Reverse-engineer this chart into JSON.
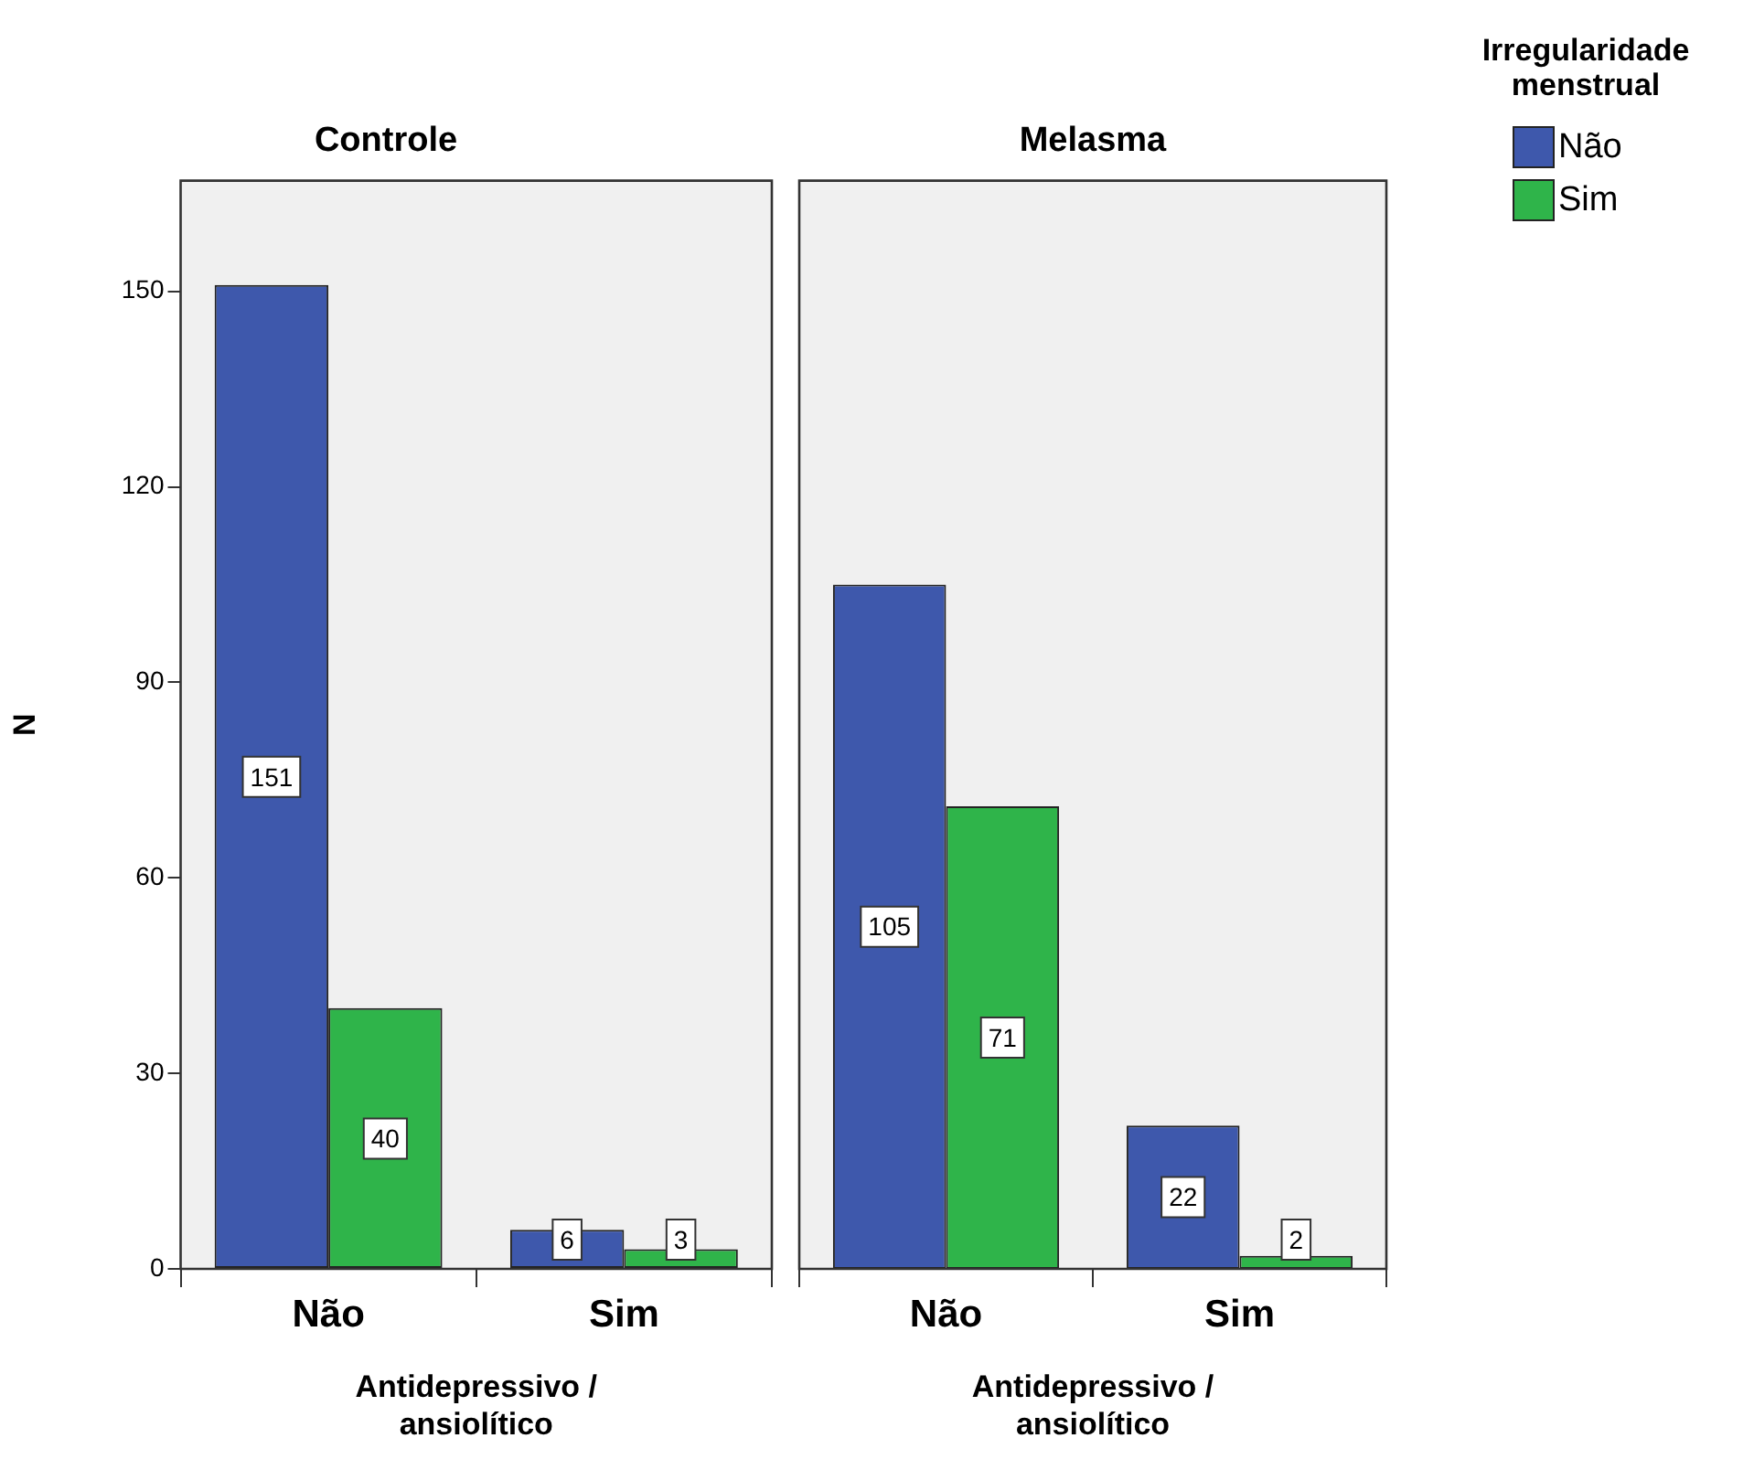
{
  "chart_data": [
    {
      "type": "bar",
      "title": "Controle",
      "xlabel": "Antidepressivo / ansiolítico",
      "ylabel": "N",
      "categories": [
        "Não",
        "Sim"
      ],
      "series": [
        {
          "color": "#3e58ac",
          "values": [
            151,
            6
          ]
        },
        {
          "color": "#2fb44a",
          "values": [
            40,
            3
          ]
        }
      ],
      "ylim": [
        0,
        167
      ],
      "yticks": [
        0,
        30,
        60,
        90,
        120,
        150
      ],
      "data_labels": true,
      "legend": false
    },
    {
      "type": "bar",
      "title": "Melasma",
      "xlabel": "Antidepressivo / ansiolítico",
      "legend_title": "Irregularidade menstrual",
      "categories": [
        "Não",
        "Sim"
      ],
      "series": [
        {
          "name": "Não",
          "color": "#3e58ac",
          "values": [
            105,
            22
          ]
        },
        {
          "name": "Sim",
          "color": "#2fb44a",
          "values": [
            71,
            2
          ]
        }
      ],
      "ylim": [
        0,
        167
      ],
      "yticks": [
        0,
        30,
        60,
        90,
        120,
        150
      ],
      "tick_labels": "x",
      "data_labels": true,
      "legend": "top right"
    }
  ]
}
